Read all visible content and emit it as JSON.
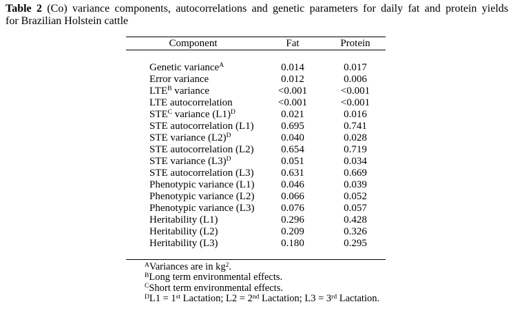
{
  "caption": {
    "label": "Table 2",
    "line1_rest": " (Co) variance components, autocorrelations and genetic parameters for daily fat and protein yields",
    "line2": "for Brazilian Holstein cattle"
  },
  "table": {
    "headers": [
      "Component",
      "Fat",
      "Protein"
    ],
    "rows": [
      {
        "label": [
          [
            "t",
            "Genetic variance"
          ],
          [
            "s",
            "A"
          ]
        ],
        "fat": "0.014",
        "protein": "0.017"
      },
      {
        "label": [
          [
            "t",
            "Error variance"
          ]
        ],
        "fat": "0.012",
        "protein": "0.006"
      },
      {
        "label": [
          [
            "t",
            "LTE"
          ],
          [
            "s",
            "B"
          ],
          [
            "t",
            " variance"
          ]
        ],
        "fat": "<0.001",
        "protein": "<0.001"
      },
      {
        "label": [
          [
            "t",
            "LTE autocorrelation"
          ]
        ],
        "fat": "<0.001",
        "protein": "<0.001"
      },
      {
        "label": [
          [
            "t",
            "STE"
          ],
          [
            "s",
            "C"
          ],
          [
            "t",
            " variance (L1)"
          ],
          [
            "s",
            "D"
          ]
        ],
        "fat": "0.021",
        "protein": "0.016"
      },
      {
        "label": [
          [
            "t",
            "STE autocorrelation (L1)"
          ]
        ],
        "fat": "0.695",
        "protein": "0.741"
      },
      {
        "label": [
          [
            "t",
            "STE variance (L2)"
          ],
          [
            "s",
            "D"
          ]
        ],
        "fat": "0.040",
        "protein": "0.028"
      },
      {
        "label": [
          [
            "t",
            "STE autocorrelation (L2)"
          ]
        ],
        "fat": "0.654",
        "protein": "0.719"
      },
      {
        "label": [
          [
            "t",
            "STE variance (L3)"
          ],
          [
            "s",
            "D"
          ]
        ],
        "fat": "0.051",
        "protein": "0.034"
      },
      {
        "label": [
          [
            "t",
            "STE autocorrelation (L3)"
          ]
        ],
        "fat": "0.631",
        "protein": "0.669"
      },
      {
        "label": [
          [
            "t",
            "Phenotypic variance (L1)"
          ]
        ],
        "fat": "0.046",
        "protein": "0.039"
      },
      {
        "label": [
          [
            "t",
            "Phenotypic variance (L2)"
          ]
        ],
        "fat": "0.066",
        "protein": "0.052"
      },
      {
        "label": [
          [
            "t",
            "Phenotypic variance (L3)"
          ]
        ],
        "fat": "0.076",
        "protein": "0.057"
      },
      {
        "label": [
          [
            "t",
            "Heritability (L1)"
          ]
        ],
        "fat": "0.296",
        "protein": "0.428"
      },
      {
        "label": [
          [
            "t",
            "Heritability (L2)"
          ]
        ],
        "fat": "0.209",
        "protein": "0.326"
      },
      {
        "label": [
          [
            "t",
            "Heritability (L3)"
          ]
        ],
        "fat": "0.180",
        "protein": "0.295"
      }
    ]
  },
  "footnotes": [
    {
      "parts": [
        [
          "s",
          "A"
        ],
        [
          "t",
          "Variances are in kg"
        ],
        [
          "s",
          "2"
        ],
        [
          "t",
          "."
        ]
      ]
    },
    {
      "parts": [
        [
          "s",
          "B"
        ],
        [
          "t",
          "Long term environmental effects."
        ]
      ]
    },
    {
      "parts": [
        [
          "s",
          "C"
        ],
        [
          "t",
          "Short term environmental effects."
        ]
      ]
    },
    {
      "parts": [
        [
          "s",
          "D"
        ],
        [
          "t",
          "L1 = 1"
        ],
        [
          "s",
          "st"
        ],
        [
          "t",
          " Lactation; L2 = 2"
        ],
        [
          "s",
          "nd"
        ],
        [
          "t",
          " Lactation; L3 = 3"
        ],
        [
          "s",
          "rd"
        ],
        [
          "t",
          " Lactation."
        ]
      ]
    }
  ],
  "colors": {
    "text": "#000000",
    "background": "#ffffff",
    "rule": "#000000"
  }
}
